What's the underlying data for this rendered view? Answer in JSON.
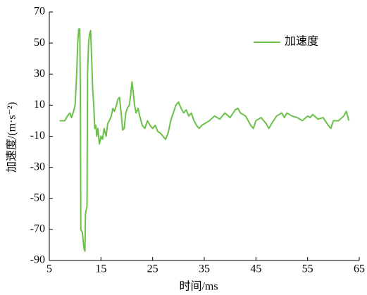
{
  "chart_data": {
    "type": "line",
    "xlabel": "时间/ms",
    "ylabel": "加速度/(m·s⁻²)",
    "x": [
      7,
      8,
      8.5,
      9,
      9.3,
      9.7,
      10,
      10.3,
      10.5,
      10.7,
      10.9,
      11,
      11.1,
      11.4,
      11.7,
      11.9,
      12,
      12.3,
      12.4,
      12.6,
      12.8,
      13,
      13.2,
      13.4,
      13.6,
      13.8,
      14,
      14.2,
      14.4,
      14.7,
      15,
      15.3,
      15.6,
      16,
      16.3,
      16.6,
      17,
      17.3,
      17.6,
      18,
      18.3,
      18.6,
      18.9,
      19.2,
      19.5,
      19.8,
      20.1,
      20.5,
      20.8,
      21,
      21.2,
      21.5,
      21.8,
      22.2,
      22.5,
      23,
      23.5,
      24,
      24.5,
      25,
      25.5,
      26,
      26.5,
      27,
      27.5,
      28,
      28.5,
      29,
      29.5,
      30,
      30.5,
      31,
      31.5,
      32,
      32.5,
      33,
      33.5,
      34,
      34.5,
      35,
      36,
      37,
      38,
      38.5,
      39,
      40,
      41,
      41.5,
      42,
      43,
      44,
      44.5,
      45,
      46,
      47,
      47.5,
      48,
      49,
      50,
      50.5,
      51,
      52,
      53,
      54,
      55,
      55.5,
      56,
      57,
      58,
      59,
      59.5,
      60,
      61,
      62,
      62.5,
      63
    ],
    "series": [
      {
        "name": "加速度",
        "color": "#6cc04a",
        "values": [
          0,
          0,
          3,
          5,
          2,
          6,
          10,
          30,
          50,
          59,
          59,
          20,
          -70,
          -72,
          -82,
          -84,
          -60,
          -55,
          30,
          50,
          56,
          58,
          40,
          20,
          10,
          -5,
          -3,
          -10,
          -5,
          -15,
          -10,
          -12,
          -5,
          -10,
          -2,
          0,
          3,
          8,
          6,
          10,
          14,
          15,
          5,
          -6,
          -5,
          5,
          8,
          10,
          18,
          25,
          20,
          10,
          5,
          8,
          3,
          -3,
          -5,
          0,
          -3,
          -5,
          -3,
          -7,
          -8,
          -10,
          -12,
          -8,
          0,
          5,
          10,
          12,
          8,
          5,
          7,
          3,
          5,
          0,
          -3,
          -5,
          -3,
          -2,
          0,
          3,
          1,
          3,
          5,
          2,
          7,
          8,
          5,
          3,
          -3,
          -5,
          0,
          2,
          -2,
          -5,
          -2,
          3,
          5,
          2,
          5,
          3,
          2,
          0,
          3,
          2,
          4,
          1,
          2,
          -3,
          -5,
          0,
          0,
          3,
          6,
          0
        ]
      }
    ],
    "xlim": [
      5,
      65
    ],
    "xticks": [
      5,
      15,
      25,
      35,
      45,
      55,
      65
    ],
    "ylim": [
      -90,
      70
    ],
    "yticks": [
      -90,
      -70,
      -50,
      -30,
      -10,
      10,
      30,
      50,
      70
    ],
    "legend": "upper right"
  }
}
